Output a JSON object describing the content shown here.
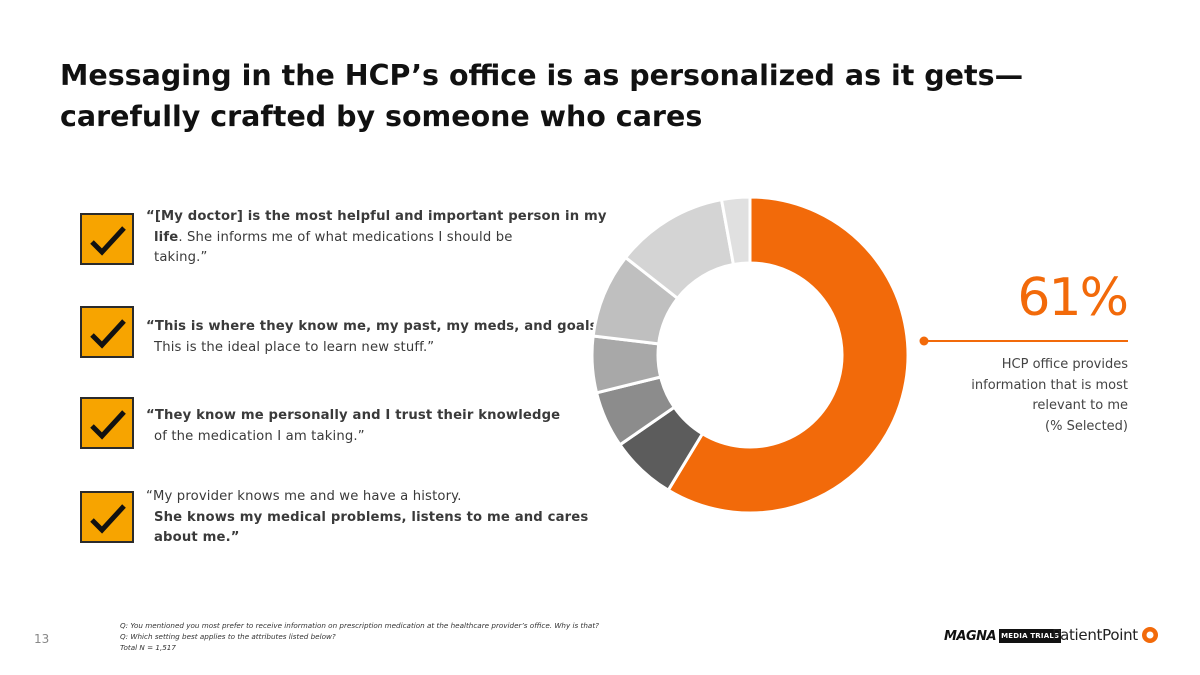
{
  "slide": {
    "title_lines": [
      "Messaging in the HCP’s office is as personalized as it gets—",
      "carefully crafted by someone who cares"
    ],
    "page_number": "13"
  },
  "quotes": [
    {
      "icon": "checkmark-icon",
      "lines": [
        {
          "parts": [
            {
              "text": "“[My doctor] is the most helpful and important person in my",
              "bold": true
            }
          ]
        },
        {
          "parts": [
            {
              "text": "life",
              "bold": true
            },
            {
              "text": ". She informs me of what medications I should be",
              "bold": false
            }
          ]
        },
        {
          "parts": [
            {
              "text": "taking.”",
              "bold": false
            }
          ]
        }
      ]
    },
    {
      "icon": "checkmark-icon",
      "lines": [
        {
          "parts": [
            {
              "text": "“This is where they know me, my past, my meds, and goals.",
              "bold": true
            }
          ]
        },
        {
          "parts": [
            {
              "text": "This is the ideal place to learn new stuff.”",
              "bold": false
            }
          ]
        }
      ]
    },
    {
      "icon": "checkmark-icon",
      "lines": [
        {
          "parts": [
            {
              "text": "“They know me personally and I trust their knowledge",
              "bold": true
            }
          ]
        },
        {
          "parts": [
            {
              "text": "of the medication I am taking.”",
              "bold": false
            }
          ]
        }
      ]
    },
    {
      "icon": "checkmark-icon",
      "lines": [
        {
          "parts": [
            {
              "text": "“My provider knows me and we have a history.",
              "bold": false
            }
          ]
        },
        {
          "parts": [
            {
              "text": "She knows my medical problems, listens to me and cares",
              "bold": true
            }
          ]
        },
        {
          "parts": [
            {
              "text": "about me.”",
              "bold": true
            }
          ]
        }
      ]
    }
  ],
  "chart_data": {
    "type": "pie",
    "style": "donut",
    "values": [
      61,
      7,
      6,
      6,
      9,
      12,
      3
    ],
    "colors": [
      "#f26a0a",
      "#5c5c5c",
      "#8c8c8c",
      "#a8a8a8",
      "#bfbfbf",
      "#d4d4d4",
      "#e0e0e0"
    ],
    "highlight": {
      "value_label": "61%",
      "caption_lines": [
        "HCP office provides",
        "information that is most",
        "relevant to me",
        "(% Selected)"
      ]
    }
  },
  "footnotes": [
    "Q: You mentioned you most prefer to receive information on prescription medication at the healthcare provider’s office. Why is that?",
    "Q: Which setting best applies to the attributes listed below?",
    "Total N = 1,517"
  ],
  "logos": {
    "magna": "MAGNA",
    "media_trials": "MEDIA TRIALS",
    "patientpoint": "PatientPoint"
  },
  "colors": {
    "accent": "#f26a0a",
    "check_box": "#f7a400"
  }
}
